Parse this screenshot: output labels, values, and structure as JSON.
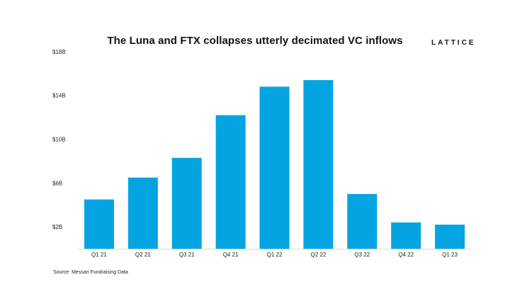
{
  "chart_data": {
    "type": "bar",
    "title": "The Luna and FTX collapses utterly decimated VC inflows",
    "categories": [
      "Q1 21",
      "Q2 21",
      "Q3 21",
      "Q4 21",
      "Q1 22",
      "Q2 22",
      "Q3 22",
      "Q4 22",
      "Q1 23"
    ],
    "values": [
      4.5,
      6.5,
      8.3,
      12.2,
      14.8,
      15.4,
      5.0,
      2.4,
      2.2
    ],
    "yticks": [
      2,
      6,
      10,
      14,
      18
    ],
    "ytick_labels": [
      "$2B",
      "$6B",
      "$10B",
      "$14B",
      "$18B"
    ],
    "ylim": [
      0,
      18
    ],
    "xlabel": "",
    "ylabel": "",
    "grid": false,
    "bar_color": "#03a4e1"
  },
  "branding": {
    "logo_text": "LATTICE"
  },
  "footer": {
    "source": "Source: Messari Fundraising Data"
  }
}
